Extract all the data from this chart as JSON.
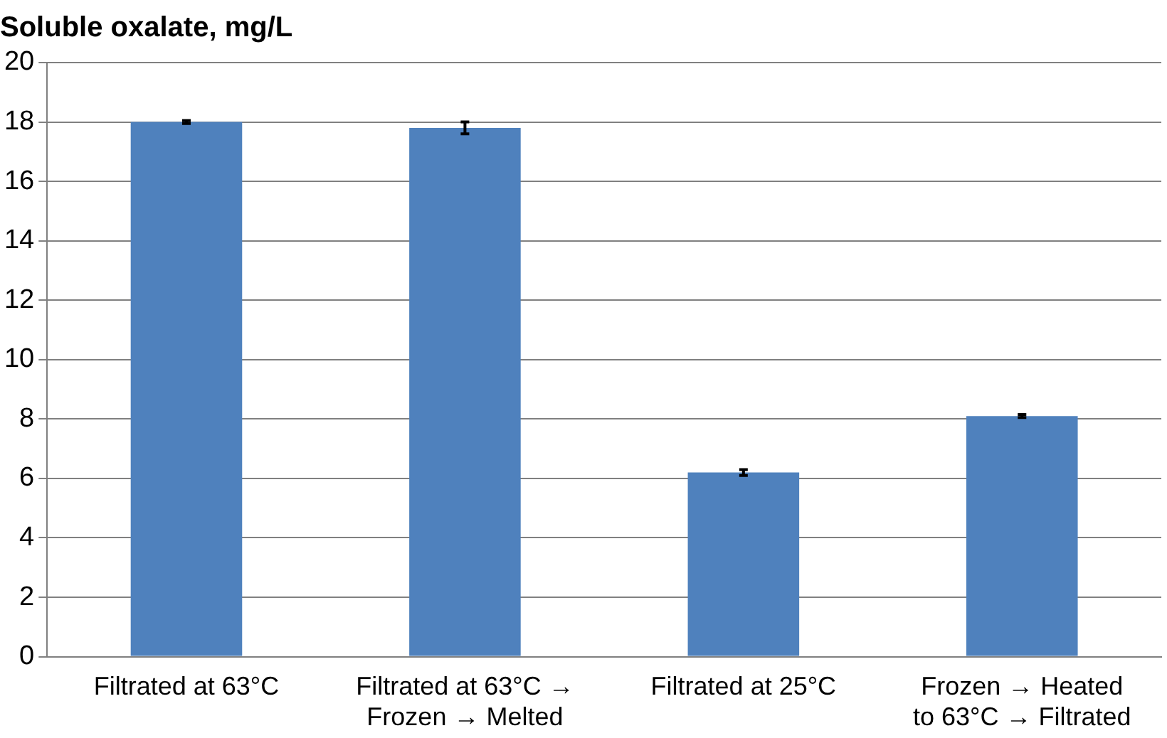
{
  "chart_data": {
    "type": "bar",
    "title": "Soluble oxalate, mg/L",
    "categories": [
      "Filtrated at 63°C",
      "Filtrated at 63°C →\nFrozen → Melted",
      "Filtrated at 25°C",
      "Frozen → Heated\nto 63°C → Filtrated"
    ],
    "values": [
      18.0,
      17.8,
      6.2,
      8.1
    ],
    "errors": [
      0.05,
      0.2,
      0.1,
      0.05
    ],
    "color": "#4f81bd",
    "ylim": [
      0,
      20
    ],
    "yticks": [
      0,
      2,
      4,
      6,
      8,
      10,
      12,
      14,
      16,
      18,
      20
    ],
    "grid": "y",
    "legend": false
  }
}
